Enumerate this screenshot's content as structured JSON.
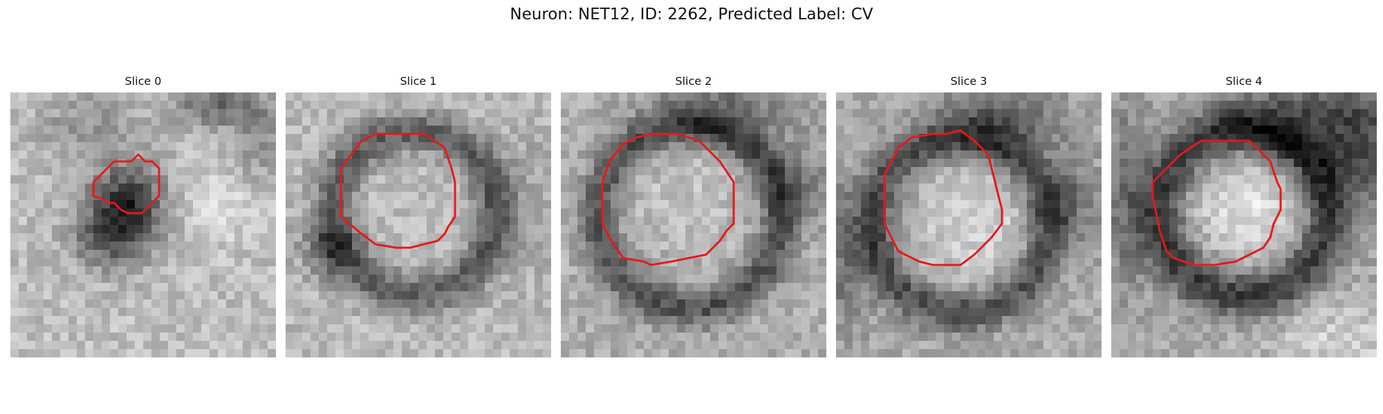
{
  "figure": {
    "title": "Neuron: NET12, ID: 2262, Predicted Label: CV"
  },
  "panels": [
    {
      "title": "Slice 0",
      "image": {
        "name": "grayscale-em-patch",
        "contour_color": "#e41a1c",
        "scene": "dark blob left of center, small red contour around it"
      }
    },
    {
      "title": "Slice 1",
      "image": {
        "name": "grayscale-em-patch",
        "contour_color": "#e41a1c",
        "scene": "light round vesicle with dark rim, red octagonal contour"
      }
    },
    {
      "title": "Slice 2",
      "image": {
        "name": "grayscale-em-patch",
        "contour_color": "#e41a1c",
        "scene": "light round vesicle with dark rim, red octagonal contour"
      }
    },
    {
      "title": "Slice 3",
      "image": {
        "name": "grayscale-em-patch",
        "contour_color": "#e41a1c",
        "scene": "light round vesicle with dark rim, red octagonal contour"
      }
    },
    {
      "title": "Slice 4",
      "image": {
        "name": "grayscale-em-patch",
        "contour_color": "#e41a1c",
        "scene": "light round vesicle with dark rim, red octagonal contour"
      }
    }
  ]
}
